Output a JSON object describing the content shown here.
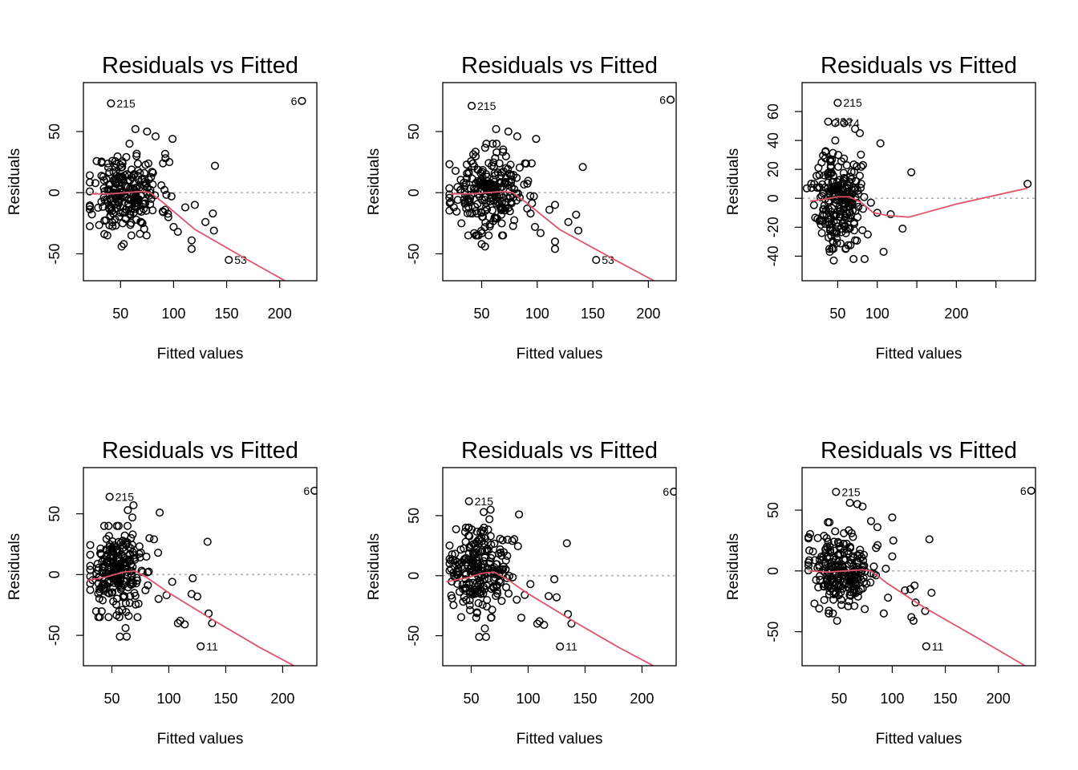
{
  "chart_data": [
    {
      "type": "scatter",
      "title": "Residuals vs Fitted",
      "xlabel": "Fitted values",
      "ylabel": "Residuals",
      "xlim": [
        15,
        235
      ],
      "ylim": [
        -72,
        90
      ],
      "xticks": [
        50,
        100,
        150,
        200
      ],
      "yticks": [
        -50,
        0,
        50
      ],
      "reference_line_y": 0,
      "smoother": [
        [
          22,
          -1
        ],
        [
          40,
          -1
        ],
        [
          55,
          0
        ],
        [
          70,
          1
        ],
        [
          78,
          0
        ],
        [
          90,
          -8
        ],
        [
          120,
          -30
        ],
        [
          170,
          -55
        ],
        [
          205,
          -72
        ]
      ],
      "labeled_points": [
        {
          "x": 41,
          "y": 73,
          "label": "215"
        },
        {
          "x": 221,
          "y": 75,
          "label": "6"
        },
        {
          "x": 152,
          "y": -55,
          "label": "53"
        }
      ],
      "outliers": [
        [
          99,
          44
        ],
        [
          139,
          22
        ],
        [
          111,
          -12
        ],
        [
          120,
          -10
        ],
        [
          130,
          -24
        ],
        [
          137,
          -17
        ],
        [
          138,
          -31
        ],
        [
          117,
          -39
        ],
        [
          117,
          -46
        ],
        [
          53,
          -42
        ],
        [
          51,
          -44
        ],
        [
          100,
          -28
        ],
        [
          104,
          -32
        ],
        [
          95,
          -20
        ],
        [
          98,
          -3
        ],
        [
          92,
          -14
        ],
        [
          64,
          52
        ],
        [
          75,
          50
        ],
        [
          83,
          46
        ],
        [
          90,
          24
        ],
        [
          96,
          25
        ]
      ],
      "cluster": {
        "cx": 55,
        "cy": 0,
        "sx": 16,
        "sy": 16,
        "n": 230,
        "seed": 11
      }
    },
    {
      "type": "scatter",
      "title": "Residuals vs Fitted",
      "xlabel": "Fitted values",
      "ylabel": "Residuals",
      "xlim": [
        15,
        225
      ],
      "ylim": [
        -72,
        90
      ],
      "xticks": [
        50,
        100,
        150,
        200
      ],
      "yticks": [
        -50,
        0,
        50
      ],
      "reference_line_y": 0,
      "smoother": [
        [
          22,
          -1
        ],
        [
          40,
          -1
        ],
        [
          55,
          0
        ],
        [
          70,
          1
        ],
        [
          78,
          0
        ],
        [
          90,
          -8
        ],
        [
          120,
          -30
        ],
        [
          170,
          -55
        ],
        [
          205,
          -72
        ]
      ],
      "labeled_points": [
        {
          "x": 41,
          "y": 71,
          "label": "215"
        },
        {
          "x": 220,
          "y": 76,
          "label": "6"
        },
        {
          "x": 153,
          "y": -55,
          "label": "53"
        }
      ],
      "outliers": [
        [
          99,
          44
        ],
        [
          141,
          21
        ],
        [
          111,
          -14
        ],
        [
          116,
          -10
        ],
        [
          128,
          -24
        ],
        [
          135,
          -18
        ],
        [
          137,
          -31
        ],
        [
          116,
          -40
        ],
        [
          116,
          -46
        ],
        [
          50,
          -42
        ],
        [
          53,
          -44
        ],
        [
          98,
          -28
        ],
        [
          103,
          -33
        ],
        [
          94,
          -17
        ],
        [
          97,
          -3
        ],
        [
          91,
          -13
        ],
        [
          63,
          52
        ],
        [
          74,
          50
        ],
        [
          82,
          46
        ],
        [
          89,
          24
        ],
        [
          95,
          24
        ]
      ],
      "cluster": {
        "cx": 55,
        "cy": 0,
        "sx": 16,
        "sy": 16,
        "n": 230,
        "seed": 23
      }
    },
    {
      "type": "scatter",
      "title": "Residuals vs Fitted",
      "xlabel": "Fitted values",
      "ylabel": "Residuals",
      "xlim": [
        5,
        300
      ],
      "ylim": [
        -57,
        80
      ],
      "xticks": [
        50,
        100,
        200
      ],
      "xticks_extra_unlabeled": [
        150,
        250
      ],
      "yticks": [
        -40,
        -20,
        0,
        20,
        40,
        60
      ],
      "reference_line_y": 0,
      "smoother": [
        [
          15,
          -2
        ],
        [
          30,
          -1
        ],
        [
          50,
          1
        ],
        [
          65,
          1
        ],
        [
          80,
          -3
        ],
        [
          95,
          -10
        ],
        [
          115,
          -12
        ],
        [
          140,
          -13
        ],
        [
          200,
          -4
        ],
        [
          290,
          7
        ]
      ],
      "labeled_points": [
        {
          "x": 50,
          "y": 66,
          "label": "215"
        },
        {
          "x": 38,
          "y": 53,
          "label": "232"
        },
        {
          "x": 47,
          "y": 52,
          "label": "374"
        }
      ],
      "outliers": [
        [
          290,
          10
        ],
        [
          143,
          18
        ],
        [
          132,
          -21
        ],
        [
          108,
          -37
        ],
        [
          117,
          -11
        ],
        [
          100,
          -10
        ],
        [
          92,
          -3
        ],
        [
          104,
          38
        ],
        [
          82,
          23
        ],
        [
          88,
          -25
        ],
        [
          70,
          -42
        ],
        [
          84,
          -42
        ],
        [
          60,
          -35
        ],
        [
          45,
          -43
        ],
        [
          40,
          -37
        ],
        [
          58,
          52
        ],
        [
          72,
          48
        ],
        [
          78,
          45
        ]
      ],
      "cluster": {
        "cx": 50,
        "cy": 0,
        "sx": 14,
        "sy": 17,
        "n": 230,
        "seed": 37
      }
    },
    {
      "type": "scatter",
      "title": "Residuals vs Fitted",
      "xlabel": "Fitted values",
      "ylabel": "Residuals",
      "xlim": [
        25,
        230
      ],
      "ylim": [
        -75,
        88
      ],
      "xticks": [
        50,
        100,
        150,
        200
      ],
      "yticks": [
        -50,
        0,
        50
      ],
      "reference_line_y": 0,
      "smoother": [
        [
          28,
          -5
        ],
        [
          45,
          -2
        ],
        [
          60,
          2
        ],
        [
          70,
          3
        ],
        [
          80,
          -2
        ],
        [
          100,
          -15
        ],
        [
          140,
          -38
        ],
        [
          180,
          -60
        ],
        [
          210,
          -75
        ]
      ],
      "labeled_points": [
        {
          "x": 48,
          "y": 64,
          "label": "215"
        },
        {
          "x": 228,
          "y": 69,
          "label": "6"
        },
        {
          "x": 128,
          "y": -59,
          "label": "11"
        }
      ],
      "outliers": [
        [
          92,
          51
        ],
        [
          134,
          27
        ],
        [
          103,
          -6
        ],
        [
          121,
          -3
        ],
        [
          120,
          -16
        ],
        [
          125,
          -18
        ],
        [
          110,
          -38
        ],
        [
          114,
          -41
        ],
        [
          108,
          -40
        ],
        [
          135,
          -32
        ],
        [
          138,
          -40
        ],
        [
          91,
          -20
        ],
        [
          98,
          -17
        ],
        [
          57,
          -51
        ],
        [
          63,
          -51
        ],
        [
          62,
          -44
        ],
        [
          69,
          57
        ],
        [
          64,
          53
        ],
        [
          68,
          47
        ],
        [
          83,
          30
        ],
        [
          87,
          29
        ]
      ],
      "cluster": {
        "cx": 55,
        "cy": 2,
        "sx": 13,
        "sy": 18,
        "n": 230,
        "seed": 53
      }
    },
    {
      "type": "scatter",
      "title": "Residuals vs Fitted",
      "xlabel": "Fitted values",
      "ylabel": "Residuals",
      "xlim": [
        25,
        230
      ],
      "ylim": [
        -75,
        90
      ],
      "xticks": [
        50,
        100,
        150,
        200
      ],
      "yticks": [
        -50,
        0,
        50
      ],
      "reference_line_y": 0,
      "smoother": [
        [
          28,
          -5
        ],
        [
          45,
          -2
        ],
        [
          60,
          2
        ],
        [
          70,
          3
        ],
        [
          80,
          -2
        ],
        [
          100,
          -15
        ],
        [
          140,
          -38
        ],
        [
          180,
          -60
        ],
        [
          210,
          -75
        ]
      ],
      "labeled_points": [
        {
          "x": 48,
          "y": 62,
          "label": "215"
        },
        {
          "x": 228,
          "y": 70,
          "label": "6"
        },
        {
          "x": 128,
          "y": -59,
          "label": "11"
        }
      ],
      "outliers": [
        [
          92,
          51
        ],
        [
          134,
          27
        ],
        [
          102,
          -7
        ],
        [
          123,
          -3
        ],
        [
          118,
          -17
        ],
        [
          125,
          -18
        ],
        [
          110,
          -38
        ],
        [
          114,
          -41
        ],
        [
          108,
          -40
        ],
        [
          135,
          -32
        ],
        [
          138,
          -40
        ],
        [
          90,
          -20
        ],
        [
          97,
          -16
        ],
        [
          57,
          -51
        ],
        [
          63,
          -51
        ],
        [
          62,
          -44
        ],
        [
          67,
          55
        ],
        [
          61,
          53
        ],
        [
          66,
          47
        ],
        [
          82,
          30
        ],
        [
          86,
          29
        ]
      ],
      "cluster": {
        "cx": 55,
        "cy": 2,
        "sx": 13,
        "sy": 18,
        "n": 230,
        "seed": 67
      }
    },
    {
      "type": "scatter",
      "title": "Residuals vs Fitted",
      "xlabel": "Fitted values",
      "ylabel": "Residuals",
      "xlim": [
        15,
        235
      ],
      "ylim": [
        -78,
        85
      ],
      "xticks": [
        50,
        100,
        150,
        200
      ],
      "yticks": [
        -50,
        0,
        50
      ],
      "reference_line_y": 0,
      "smoother": [
        [
          22,
          0
        ],
        [
          40,
          -1
        ],
        [
          55,
          0
        ],
        [
          72,
          1
        ],
        [
          80,
          0
        ],
        [
          95,
          -10
        ],
        [
          130,
          -30
        ],
        [
          180,
          -55
        ],
        [
          225,
          -78
        ]
      ],
      "labeled_points": [
        {
          "x": 47,
          "y": 65,
          "label": "215"
        },
        {
          "x": 231,
          "y": 66,
          "label": "6"
        },
        {
          "x": 132,
          "y": -62,
          "label": "11"
        }
      ],
      "outliers": [
        [
          100,
          44
        ],
        [
          135,
          26
        ],
        [
          101,
          25
        ],
        [
          100,
          12
        ],
        [
          112,
          -16
        ],
        [
          117,
          -15
        ],
        [
          121,
          -12
        ],
        [
          122,
          -26
        ],
        [
          118,
          -38
        ],
        [
          120,
          -41
        ],
        [
          131,
          -33
        ],
        [
          137,
          -18
        ],
        [
          96,
          -22
        ],
        [
          92,
          -35
        ],
        [
          48,
          -41
        ],
        [
          60,
          56
        ],
        [
          67,
          55
        ],
        [
          72,
          53
        ],
        [
          80,
          41
        ],
        [
          86,
          36
        ]
      ],
      "cluster": {
        "cx": 53,
        "cy": 0,
        "sx": 15,
        "sy": 16,
        "n": 230,
        "seed": 89
      }
    }
  ]
}
